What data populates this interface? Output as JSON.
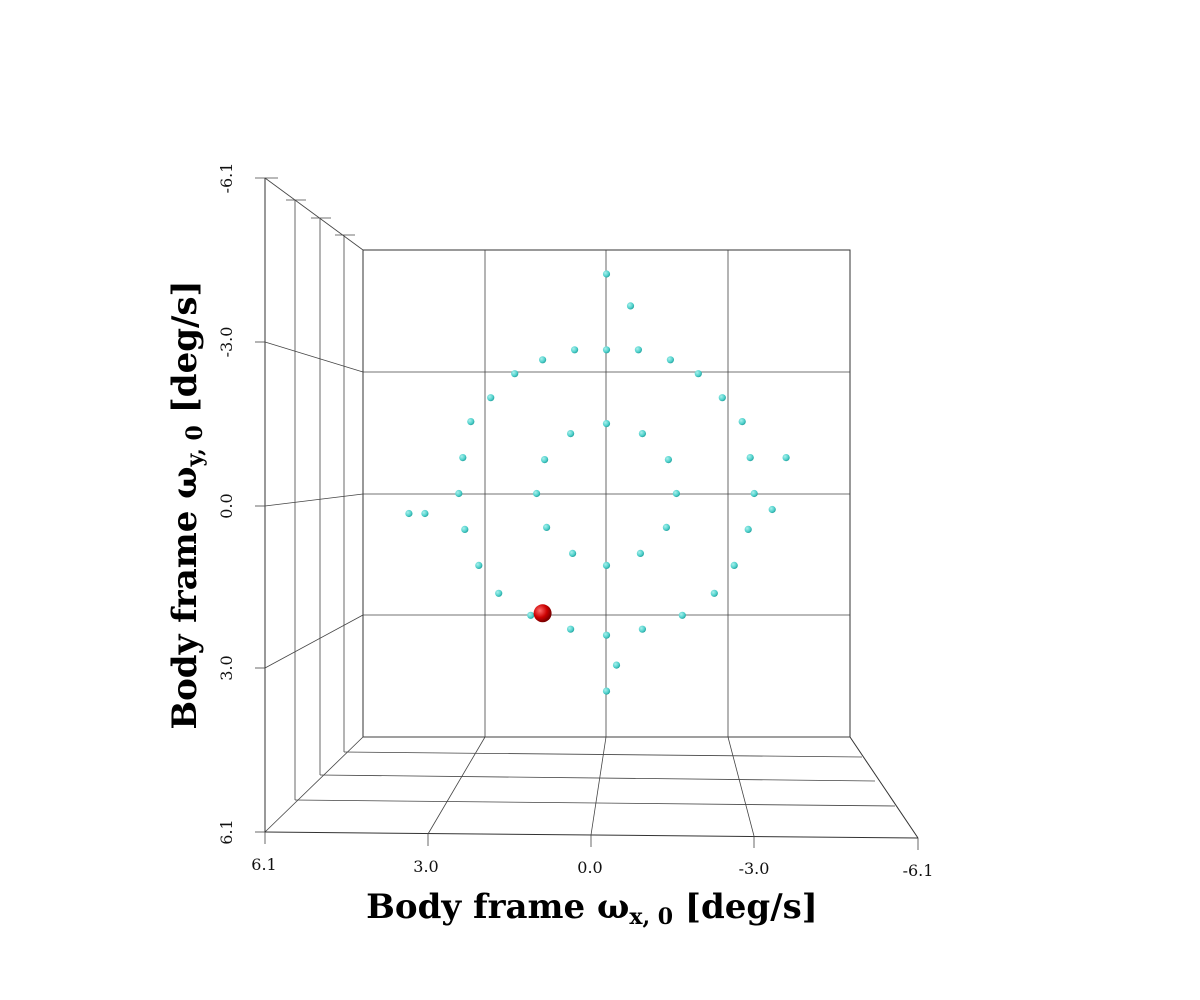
{
  "chart_data": {
    "type": "scatter",
    "xlabel": {
      "main": "Body frame ω",
      "sub": "x, 0",
      "unit": "[deg/s]"
    },
    "ylabel": {
      "main": "Body frame ω",
      "sub": "y, 0",
      "unit": "[deg/s]"
    },
    "x_tick_labels": [
      "6.1",
      "3.0",
      "0.0",
      "-3.0",
      "-6.1"
    ],
    "y_tick_labels": [
      "-6.1",
      "-3.0",
      "0.0",
      "3.0",
      "6.1"
    ],
    "xlim": [
      6.1,
      -6.1
    ],
    "ylim": [
      -6.1,
      6.1
    ],
    "grid": true,
    "point_color": "#4fd1cc",
    "highlight_color": "#cc0000",
    "series": [
      {
        "values": [
          {
            "x": 0.0,
            "y": -5.5
          },
          {
            "x": -0.6,
            "y": -4.7
          },
          {
            "x": -0.25,
            "y": 4.3
          },
          {
            "x": 0.0,
            "y": 4.95
          },
          {
            "x": 4.55,
            "y": 0.5
          },
          {
            "x": 4.95,
            "y": 0.5
          },
          {
            "x": -4.5,
            "y": -0.9
          },
          {
            "x": -4.15,
            "y": 0.4
          },
          {
            "x": 0.0,
            "y": -3.6
          },
          {
            "x": 0.8,
            "y": -3.6
          },
          {
            "x": -0.8,
            "y": -3.6
          },
          {
            "x": 1.6,
            "y": -3.35
          },
          {
            "x": -1.6,
            "y": -3.35
          },
          {
            "x": 2.3,
            "y": -3.0
          },
          {
            "x": -2.3,
            "y": -3.0
          },
          {
            "x": 2.9,
            "y": -2.4
          },
          {
            "x": -2.9,
            "y": -2.4
          },
          {
            "x": 3.4,
            "y": -1.8
          },
          {
            "x": -3.4,
            "y": -1.8
          },
          {
            "x": 3.6,
            "y": -0.9
          },
          {
            "x": -3.6,
            "y": -0.9
          },
          {
            "x": 3.7,
            "y": 0.0
          },
          {
            "x": -3.7,
            "y": 0.0
          },
          {
            "x": 3.55,
            "y": 0.9
          },
          {
            "x": -3.55,
            "y": 0.9
          },
          {
            "x": 3.2,
            "y": 1.8
          },
          {
            "x": -3.2,
            "y": 1.8
          },
          {
            "x": 2.7,
            "y": 2.5
          },
          {
            "x": -2.7,
            "y": 2.5
          },
          {
            "x": 1.9,
            "y": 3.05
          },
          {
            "x": -1.9,
            "y": 3.05
          },
          {
            "x": 0.9,
            "y": 3.4
          },
          {
            "x": -0.9,
            "y": 3.4
          },
          {
            "x": 0.0,
            "y": 3.55
          },
          {
            "x": 0.0,
            "y": -1.75
          },
          {
            "x": 0.9,
            "y": -1.5
          },
          {
            "x": -0.9,
            "y": -1.5
          },
          {
            "x": 1.55,
            "y": -0.85
          },
          {
            "x": -1.55,
            "y": -0.85
          },
          {
            "x": 1.75,
            "y": 0.0
          },
          {
            "x": -1.75,
            "y": 0.0
          },
          {
            "x": 1.5,
            "y": 0.85
          },
          {
            "x": -1.5,
            "y": 0.85
          },
          {
            "x": 0.85,
            "y": 1.5
          },
          {
            "x": -0.85,
            "y": 1.5
          },
          {
            "x": 0.0,
            "y": 1.8
          }
        ]
      },
      {
        "name": "",
        "values": [
          {
            "x": 1.6,
            "y": 3.0
          }
        ],
        "highlight": true
      }
    ]
  }
}
